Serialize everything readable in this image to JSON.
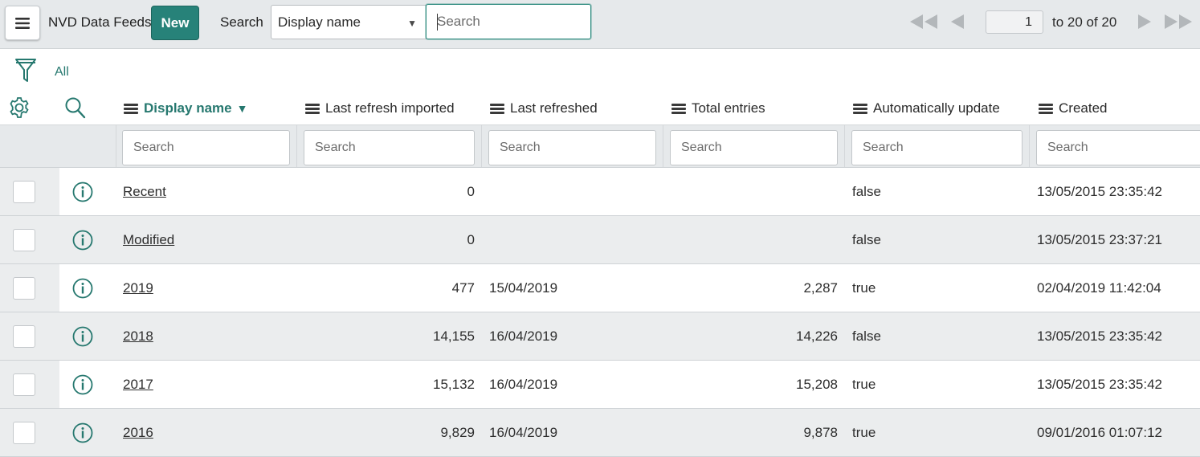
{
  "header": {
    "list_title": "NVD Data Feeds",
    "new_label": "New",
    "search_label": "Search",
    "search_field_value": "Display name",
    "search_placeholder": "Search",
    "current_page": "1",
    "page_range": "to 20 of 20"
  },
  "filter": {
    "breadcrumb": "All"
  },
  "columns": [
    {
      "label": "Display name",
      "sorted": true
    },
    {
      "label": "Last refresh imported"
    },
    {
      "label": "Last refreshed"
    },
    {
      "label": "Total entries"
    },
    {
      "label": "Automatically update"
    },
    {
      "label": "Created"
    }
  ],
  "column_search_placeholder": "Search",
  "rows": [
    {
      "display_name": "Recent",
      "last_refresh_imported": "0",
      "last_refreshed": "",
      "total_entries": "",
      "auto_update": "false",
      "created": "13/05/2015 23:35:42"
    },
    {
      "display_name": "Modified",
      "last_refresh_imported": "0",
      "last_refreshed": "",
      "total_entries": "",
      "auto_update": "false",
      "created": "13/05/2015 23:37:21"
    },
    {
      "display_name": "2019",
      "last_refresh_imported": "477",
      "last_refreshed": "15/04/2019",
      "total_entries": "2,287",
      "auto_update": "true",
      "created": "02/04/2019 11:42:04"
    },
    {
      "display_name": "2018",
      "last_refresh_imported": "14,155",
      "last_refreshed": "16/04/2019",
      "total_entries": "14,226",
      "auto_update": "false",
      "created": "13/05/2015 23:35:42"
    },
    {
      "display_name": "2017",
      "last_refresh_imported": "15,132",
      "last_refreshed": "16/04/2019",
      "total_entries": "15,208",
      "auto_update": "true",
      "created": "13/05/2015 23:35:42"
    },
    {
      "display_name": "2016",
      "last_refresh_imported": "9,829",
      "last_refreshed": "16/04/2019",
      "total_entries": "9,878",
      "auto_update": "true",
      "created": "09/01/2016 01:07:12"
    }
  ],
  "icons": {
    "menu": "hamburger-icon",
    "first_page": "first-page-icon",
    "prev_page": "previous-page-icon",
    "next_page": "next-page-icon",
    "last_page": "last-page-icon",
    "filter": "funnel-icon",
    "personalize": "gear-icon",
    "column_search": "magnifier-icon",
    "record_info": "info-icon"
  },
  "colors": {
    "accent": "#278279",
    "header_bg": "#e6e9eb",
    "row_alt_bg": "#ebedee"
  }
}
